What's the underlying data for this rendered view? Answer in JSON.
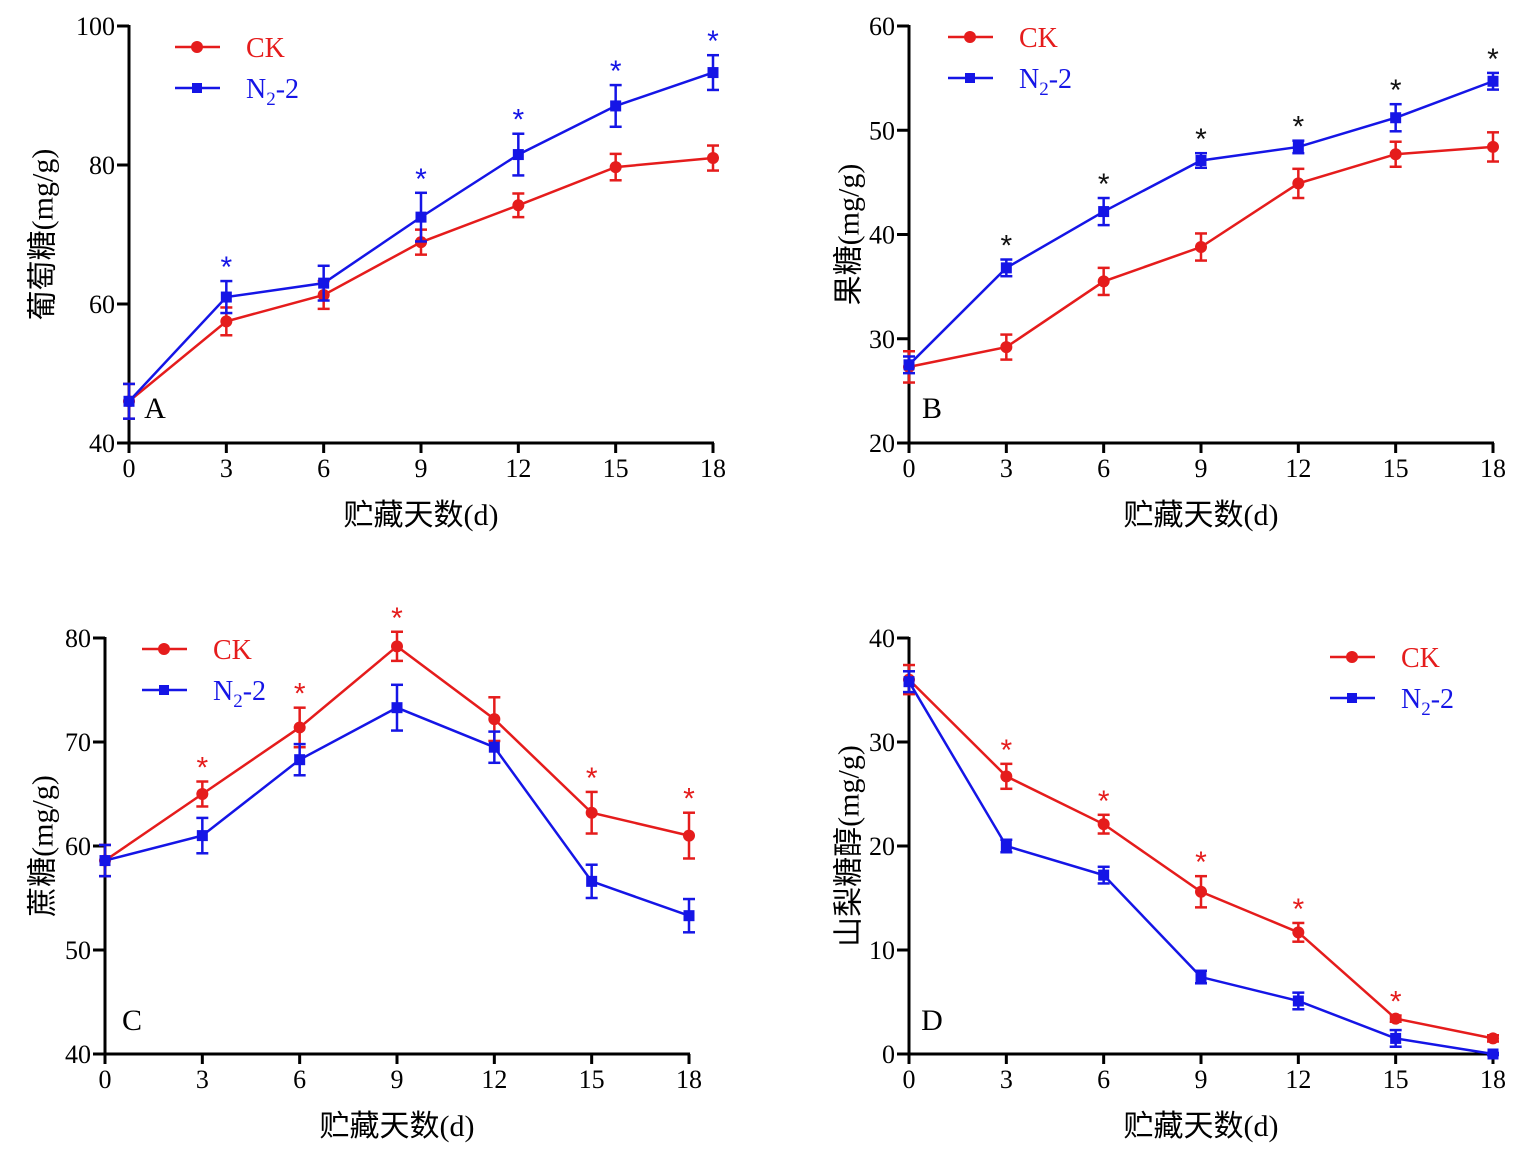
{
  "chart_data": [
    {
      "type": "line",
      "panel_label": "A",
      "xlabel": "贮藏天数(d)",
      "ylabel": "葡萄糖(mg/g)",
      "x": [
        0,
        3,
        6,
        9,
        12,
        15,
        18
      ],
      "xticks": [
        "0",
        "3",
        "6",
        "9",
        "12",
        "15",
        "18"
      ],
      "xlim": [
        0,
        18
      ],
      "ylim": [
        40,
        100
      ],
      "yticks": [
        "40",
        "60",
        "80",
        "100"
      ],
      "legend_position": "top-left",
      "significance_color": "#1515e6",
      "series": [
        {
          "name": "CK",
          "color": "#e51c1c",
          "marker": "circle",
          "values": [
            46.0,
            57.5,
            61.3,
            68.9,
            74.2,
            79.7,
            81.0
          ],
          "errors": [
            2.5,
            2.0,
            2.0,
            1.8,
            1.7,
            1.9,
            1.8
          ]
        },
        {
          "name": "N2-2",
          "name_main": "N",
          "name_sub": "2",
          "name_suffix": "-2",
          "color": "#1515e6",
          "marker": "square",
          "values": [
            46.0,
            61.0,
            63.0,
            72.5,
            81.5,
            88.5,
            93.3
          ],
          "errors": [
            2.5,
            2.3,
            2.5,
            3.5,
            3.0,
            3.0,
            2.5
          ]
        }
      ],
      "significance_x": [
        3,
        9,
        12,
        15,
        18
      ]
    },
    {
      "type": "line",
      "panel_label": "B",
      "xlabel": "贮藏天数(d)",
      "ylabel": "果糖(mg/g)",
      "x": [
        0,
        3,
        6,
        9,
        12,
        15,
        18
      ],
      "xticks": [
        "0",
        "3",
        "6",
        "9",
        "12",
        "15",
        "18"
      ],
      "xlim": [
        0,
        18
      ],
      "ylim": [
        20,
        60
      ],
      "yticks": [
        "20",
        "30",
        "40",
        "50",
        "60"
      ],
      "legend_position": "top-left",
      "significance_color": "#111111",
      "series": [
        {
          "name": "CK",
          "color": "#e51c1c",
          "marker": "circle",
          "values": [
            27.3,
            29.2,
            35.5,
            38.8,
            44.9,
            47.7,
            48.4
          ],
          "errors": [
            1.5,
            1.2,
            1.3,
            1.3,
            1.4,
            1.2,
            1.4
          ]
        },
        {
          "name": "N2-2",
          "name_main": "N",
          "name_sub": "2",
          "name_suffix": "-2",
          "color": "#1515e6",
          "marker": "square",
          "values": [
            27.5,
            36.8,
            42.2,
            47.1,
            48.4,
            51.2,
            54.7
          ],
          "errors": [
            0.8,
            0.8,
            1.3,
            0.7,
            0.6,
            1.3,
            0.8
          ]
        }
      ],
      "significance_x": [
        3,
        6,
        9,
        12,
        15,
        18
      ]
    },
    {
      "type": "line",
      "panel_label": "C",
      "xlabel": "贮藏天数(d)",
      "ylabel": "蔗糖(mg/g)",
      "x": [
        0,
        3,
        6,
        9,
        12,
        15,
        18
      ],
      "xticks": [
        "0",
        "3",
        "6",
        "9",
        "12",
        "15",
        "18"
      ],
      "xlim": [
        0,
        18
      ],
      "ylim": [
        40,
        80
      ],
      "yticks": [
        "40",
        "50",
        "60",
        "70",
        "80"
      ],
      "legend_position": "top-left",
      "significance_color": "#e51c1c",
      "series": [
        {
          "name": "CK",
          "color": "#e51c1c",
          "marker": "circle",
          "values": [
            58.6,
            65.0,
            71.4,
            79.2,
            72.2,
            63.2,
            61.0
          ],
          "errors": [
            1.5,
            1.2,
            1.9,
            1.4,
            2.1,
            2.0,
            2.2
          ]
        },
        {
          "name": "N2-2",
          "name_main": "N",
          "name_sub": "2",
          "name_suffix": "-2",
          "color": "#1515e6",
          "marker": "square",
          "values": [
            58.6,
            61.0,
            68.3,
            73.3,
            69.5,
            56.6,
            53.3
          ],
          "errors": [
            1.5,
            1.7,
            1.5,
            2.2,
            1.5,
            1.6,
            1.6
          ]
        }
      ],
      "significance_x": [
        3,
        6,
        9,
        15,
        18
      ]
    },
    {
      "type": "line",
      "panel_label": "D",
      "xlabel": "贮藏天数(d)",
      "ylabel": "山梨糖醇(mg/g)",
      "x": [
        0,
        3,
        6,
        9,
        12,
        15,
        18
      ],
      "xticks": [
        "0",
        "3",
        "6",
        "9",
        "12",
        "15",
        "18"
      ],
      "xlim": [
        0,
        18
      ],
      "ylim": [
        0,
        40
      ],
      "yticks": [
        "0",
        "10",
        "20",
        "30",
        "40"
      ],
      "legend_position": "top-right",
      "significance_color": "#e51c1c",
      "series": [
        {
          "name": "CK",
          "color": "#e51c1c",
          "marker": "circle",
          "values": [
            36.0,
            26.7,
            22.1,
            15.6,
            11.7,
            3.4,
            1.5
          ],
          "errors": [
            1.4,
            1.2,
            0.9,
            1.5,
            0.9,
            0.3,
            0.3
          ]
        },
        {
          "name": "N2-2",
          "name_main": "N",
          "name_sub": "2",
          "name_suffix": "-2",
          "color": "#1515e6",
          "marker": "square",
          "values": [
            35.8,
            20.0,
            17.2,
            7.4,
            5.1,
            1.5,
            0.0
          ],
          "errors": [
            1.0,
            0.6,
            0.8,
            0.6,
            0.8,
            0.8,
            0.1
          ]
        }
      ],
      "significance_x": [
        3,
        6,
        9,
        12,
        15
      ]
    }
  ]
}
